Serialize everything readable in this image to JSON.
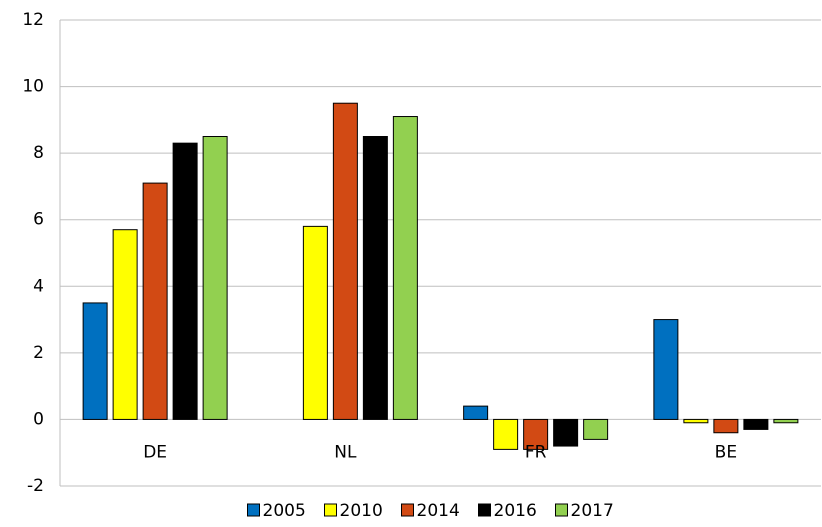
{
  "chart_data": {
    "type": "bar",
    "categories": [
      "DE",
      "NL",
      "FR",
      "BE"
    ],
    "series": [
      {
        "name": "2005",
        "color": "#0070c0",
        "values": [
          3.5,
          null,
          0.4,
          3.0
        ]
      },
      {
        "name": "2010",
        "color": "#ffff00",
        "values": [
          5.7,
          5.8,
          -0.9,
          -0.1
        ]
      },
      {
        "name": "2014",
        "color": "#d24a14",
        "values": [
          7.1,
          9.5,
          -0.9,
          -0.4
        ]
      },
      {
        "name": "2016",
        "color": "#000000",
        "values": [
          8.3,
          8.5,
          -0.8,
          -0.3
        ]
      },
      {
        "name": "2017",
        "color": "#92d050",
        "values": [
          8.5,
          9.1,
          -0.6,
          -0.1
        ]
      }
    ],
    "ylim": [
      -2,
      12
    ],
    "yticks": [
      -2,
      0,
      2,
      4,
      6,
      8,
      10,
      12
    ],
    "grid": true,
    "legend": "bottom"
  }
}
